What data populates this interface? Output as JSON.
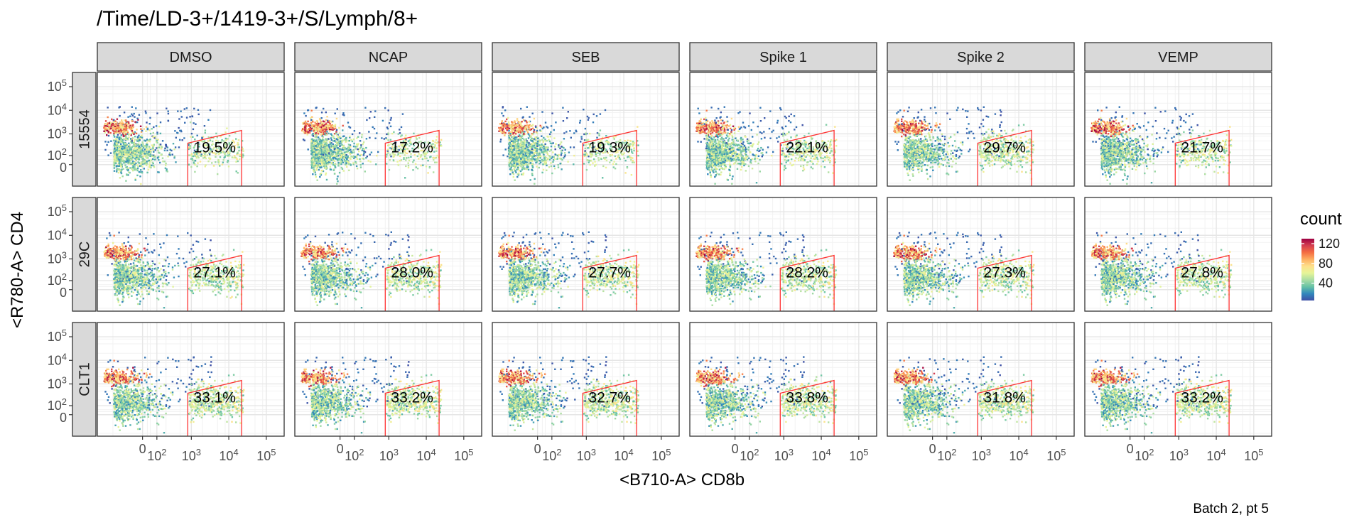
{
  "chart_data": {
    "type": "heatmap",
    "title": "/Time/LD-3+/1419-3+/S/Lymph/8+",
    "xlabel": "<B710-A> CD8b",
    "ylabel": "<R780-A> CD4",
    "caption": "Batch 2, pt 5",
    "columns": [
      "DMSO",
      "NCAP",
      "SEB",
      "Spike 1",
      "Spike 2",
      "VEMP"
    ],
    "rows": [
      "15554",
      "29C",
      "CLT1"
    ],
    "x_ticks": [
      {
        "label": "0",
        "value": 0
      },
      {
        "label": "10",
        "sup": "2",
        "value": 100
      },
      {
        "label": "10",
        "sup": "3",
        "value": 1000
      },
      {
        "label": "10",
        "sup": "4",
        "value": 10000
      },
      {
        "label": "10",
        "sup": "5",
        "value": 100000
      }
    ],
    "y_ticks": [
      {
        "label": "0",
        "value": 0
      },
      {
        "label": "10",
        "sup": "2",
        "value": 100
      },
      {
        "label": "10",
        "sup": "3",
        "value": 1000
      },
      {
        "label": "10",
        "sup": "4",
        "value": 10000
      },
      {
        "label": "10",
        "sup": "5",
        "value": 100000
      }
    ],
    "gate_percentages": [
      [
        "19.5%",
        "17.2%",
        "19.3%",
        "22.1%",
        "29.7%",
        "21.7%"
      ],
      [
        "27.1%",
        "28.0%",
        "27.7%",
        "28.2%",
        "27.3%",
        "27.8%"
      ],
      [
        "33.1%",
        "33.2%",
        "32.7%",
        "33.8%",
        "31.8%",
        "33.2%"
      ]
    ],
    "legend": {
      "title": "count",
      "ticks": [
        "40",
        "80",
        "120"
      ],
      "tick_values": [
        40,
        80,
        120
      ],
      "range": [
        5,
        130
      ],
      "colors": [
        "#3f51a6",
        "#3288bd",
        "#66c2a5",
        "#abdda4",
        "#e6f598",
        "#fee08b",
        "#fdae61",
        "#f46d43",
        "#d53e4f",
        "#9e0142"
      ]
    },
    "gate_color": "#ff3333",
    "strip_fill": "#d9d9d9",
    "grid": true
  }
}
